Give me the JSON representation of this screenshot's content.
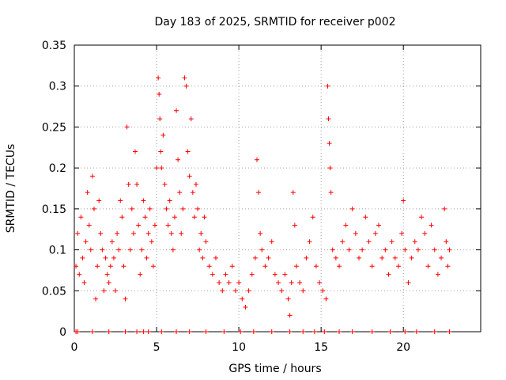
{
  "chart_data": {
    "type": "scatter",
    "title": "Day 183 of 2025, SRMTID for receiver p002",
    "xlabel": "GPS time / hours",
    "ylabel": "SRMTID / TECUs",
    "xlim": [
      0,
      24.7
    ],
    "ylim": [
      0,
      0.35
    ],
    "x_ticks": [
      0,
      5,
      10,
      15,
      20
    ],
    "x_tick_labels": [
      "0",
      "5",
      "10",
      "15",
      "20"
    ],
    "y_ticks": [
      0,
      0.05,
      0.1,
      0.15,
      0.2,
      0.25,
      0.3,
      0.35
    ],
    "y_tick_labels": [
      "0",
      "0.05",
      "0.1",
      "0.15",
      "0.2",
      "0.25",
      "0.3",
      "0.35"
    ],
    "grid": true,
    "marker": "plus",
    "series": [
      {
        "name": "SRMTID",
        "color": "#ff0000",
        "points": [
          [
            0.1,
            0.08
          ],
          [
            0.2,
            0.12
          ],
          [
            0.3,
            0.07
          ],
          [
            0.4,
            0.14
          ],
          [
            0.5,
            0.09
          ],
          [
            0.6,
            0.06
          ],
          [
            0.7,
            0.11
          ],
          [
            0.8,
            0.17
          ],
          [
            0.9,
            0.13
          ],
          [
            1.0,
            0.1
          ],
          [
            1.1,
            0.19
          ],
          [
            1.2,
            0.15
          ],
          [
            1.3,
            0.04
          ],
          [
            1.4,
            0.08
          ],
          [
            1.5,
            0.16
          ],
          [
            1.6,
            0.12
          ],
          [
            1.7,
            0.1
          ],
          [
            1.8,
            0.05
          ],
          [
            1.9,
            0.09
          ],
          [
            2.0,
            0.07
          ],
          [
            2.1,
            0.06
          ],
          [
            2.2,
            0.08
          ],
          [
            2.3,
            0.11
          ],
          [
            2.4,
            0.09
          ],
          [
            2.5,
            0.05
          ],
          [
            2.6,
            0.12
          ],
          [
            2.7,
            0.1
          ],
          [
            2.8,
            0.16
          ],
          [
            2.9,
            0.14
          ],
          [
            3.0,
            0.08
          ],
          [
            3.1,
            0.04
          ],
          [
            3.2,
            0.25
          ],
          [
            3.3,
            0.18
          ],
          [
            3.4,
            0.1
          ],
          [
            3.5,
            0.15
          ],
          [
            3.6,
            0.12
          ],
          [
            3.7,
            0.22
          ],
          [
            3.8,
            0.18
          ],
          [
            3.9,
            0.13
          ],
          [
            4.0,
            0.07
          ],
          [
            4.1,
            0.1
          ],
          [
            4.2,
            0.16
          ],
          [
            4.3,
            0.14
          ],
          [
            4.4,
            0.09
          ],
          [
            4.5,
            0.12
          ],
          [
            4.6,
            0.15
          ],
          [
            4.7,
            0.11
          ],
          [
            4.8,
            0.08
          ],
          [
            4.9,
            0.13
          ],
          [
            5.0,
            0.2
          ],
          [
            5.1,
            0.31
          ],
          [
            5.15,
            0.29
          ],
          [
            5.2,
            0.26
          ],
          [
            5.25,
            0.22
          ],
          [
            5.3,
            0.2
          ],
          [
            5.4,
            0.24
          ],
          [
            5.5,
            0.18
          ],
          [
            5.6,
            0.15
          ],
          [
            5.7,
            0.13
          ],
          [
            5.8,
            0.16
          ],
          [
            5.9,
            0.12
          ],
          [
            6.0,
            0.1
          ],
          [
            6.1,
            0.14
          ],
          [
            6.2,
            0.27
          ],
          [
            6.3,
            0.21
          ],
          [
            6.4,
            0.17
          ],
          [
            6.5,
            0.12
          ],
          [
            6.6,
            0.15
          ],
          [
            6.7,
            0.31
          ],
          [
            6.8,
            0.3
          ],
          [
            6.9,
            0.22
          ],
          [
            7.0,
            0.19
          ],
          [
            7.1,
            0.26
          ],
          [
            7.2,
            0.17
          ],
          [
            7.3,
            0.14
          ],
          [
            7.4,
            0.18
          ],
          [
            7.5,
            0.15
          ],
          [
            7.6,
            0.1
          ],
          [
            7.7,
            0.12
          ],
          [
            7.8,
            0.09
          ],
          [
            7.9,
            0.14
          ],
          [
            8.0,
            0.11
          ],
          [
            8.2,
            0.08
          ],
          [
            8.4,
            0.07
          ],
          [
            8.6,
            0.09
          ],
          [
            8.8,
            0.06
          ],
          [
            9.0,
            0.05
          ],
          [
            9.2,
            0.07
          ],
          [
            9.4,
            0.06
          ],
          [
            9.6,
            0.08
          ],
          [
            9.8,
            0.05
          ],
          [
            10.0,
            0.06
          ],
          [
            10.2,
            0.04
          ],
          [
            10.4,
            0.03
          ],
          [
            10.6,
            0.05
          ],
          [
            10.8,
            0.07
          ],
          [
            11.0,
            0.09
          ],
          [
            11.1,
            0.21
          ],
          [
            11.2,
            0.17
          ],
          [
            11.3,
            0.12
          ],
          [
            11.4,
            0.1
          ],
          [
            11.6,
            0.08
          ],
          [
            11.8,
            0.09
          ],
          [
            12.0,
            0.11
          ],
          [
            12.2,
            0.07
          ],
          [
            12.4,
            0.06
          ],
          [
            12.6,
            0.05
          ],
          [
            12.8,
            0.07
          ],
          [
            13.0,
            0.04
          ],
          [
            13.1,
            0.02
          ],
          [
            13.2,
            0.06
          ],
          [
            13.3,
            0.17
          ],
          [
            13.4,
            0.13
          ],
          [
            13.5,
            0.08
          ],
          [
            13.7,
            0.06
          ],
          [
            13.9,
            0.05
          ],
          [
            14.1,
            0.09
          ],
          [
            14.3,
            0.11
          ],
          [
            14.5,
            0.14
          ],
          [
            14.7,
            0.08
          ],
          [
            14.9,
            0.06
          ],
          [
            15.1,
            0.05
          ],
          [
            15.3,
            0.04
          ],
          [
            15.4,
            0.3
          ],
          [
            15.45,
            0.26
          ],
          [
            15.5,
            0.23
          ],
          [
            15.55,
            0.2
          ],
          [
            15.6,
            0.17
          ],
          [
            15.7,
            0.1
          ],
          [
            15.9,
            0.09
          ],
          [
            16.1,
            0.08
          ],
          [
            16.3,
            0.11
          ],
          [
            16.5,
            0.13
          ],
          [
            16.7,
            0.1
          ],
          [
            16.9,
            0.15
          ],
          [
            17.1,
            0.12
          ],
          [
            17.3,
            0.09
          ],
          [
            17.5,
            0.1
          ],
          [
            17.7,
            0.14
          ],
          [
            17.9,
            0.11
          ],
          [
            18.1,
            0.08
          ],
          [
            18.3,
            0.12
          ],
          [
            18.5,
            0.13
          ],
          [
            18.7,
            0.09
          ],
          [
            18.9,
            0.1
          ],
          [
            19.1,
            0.07
          ],
          [
            19.3,
            0.11
          ],
          [
            19.5,
            0.09
          ],
          [
            19.7,
            0.08
          ],
          [
            19.9,
            0.12
          ],
          [
            20.0,
            0.16
          ],
          [
            20.1,
            0.1
          ],
          [
            20.3,
            0.06
          ],
          [
            20.5,
            0.09
          ],
          [
            20.7,
            0.11
          ],
          [
            20.9,
            0.1
          ],
          [
            21.1,
            0.14
          ],
          [
            21.3,
            0.12
          ],
          [
            21.5,
            0.08
          ],
          [
            21.7,
            0.13
          ],
          [
            21.9,
            0.1
          ],
          [
            22.1,
            0.07
          ],
          [
            22.3,
            0.09
          ],
          [
            22.5,
            0.15
          ],
          [
            22.6,
            0.11
          ],
          [
            22.7,
            0.08
          ],
          [
            22.8,
            0.1
          ]
        ],
        "zero_points": [
          0.1,
          0.2,
          1.1,
          2.1,
          3.1,
          3.8,
          4.2,
          4.5,
          5.3,
          6.2,
          7.0,
          8.0,
          9.1,
          10.1,
          10.9,
          12.0,
          13.1,
          13.9,
          14.6,
          15.2,
          16.1,
          16.9,
          18.1,
          19.2,
          20.1,
          20.8,
          21.9,
          22.8
        ]
      }
    ]
  }
}
